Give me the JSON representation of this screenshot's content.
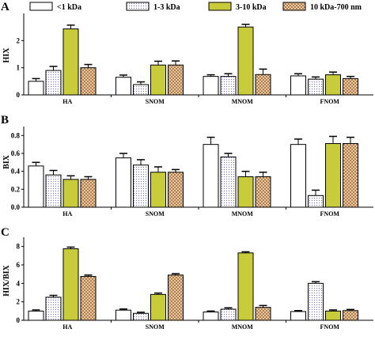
{
  "legend": [
    {
      "name": "<1 kDa",
      "pattern": "white"
    },
    {
      "name": "1-3 kDa",
      "pattern": "dots"
    },
    {
      "name": "3-10 kDa",
      "pattern": "yellow"
    },
    {
      "name": "10 kDa-700 nm",
      "pattern": "check"
    }
  ],
  "colors": {
    "yellow": "#c8cc3a",
    "dots_fg": "#6e6ec8",
    "check_a": "#b08050",
    "check_b": "#e8c8a0",
    "axis": "#000000"
  },
  "chart_data": [
    {
      "type": "bar",
      "panel": "A",
      "ylabel": "HIX",
      "categories": [
        "HA",
        "SNOM",
        "MNOM",
        "FNOM"
      ],
      "ylim": [
        0,
        3
      ],
      "yticks": [
        0,
        1,
        2
      ],
      "series": [
        {
          "name": "<1 kDa",
          "values": [
            0.5,
            0.65,
            0.68,
            0.7
          ],
          "errors": [
            0.1,
            0.08,
            0.06,
            0.08
          ]
        },
        {
          "name": "1-3 kDa",
          "values": [
            0.9,
            0.38,
            0.68,
            0.58
          ],
          "errors": [
            0.15,
            0.1,
            0.1,
            0.08
          ]
        },
        {
          "name": "3-10 kDa",
          "values": [
            2.43,
            1.1,
            2.5,
            0.74
          ],
          "errors": [
            0.14,
            0.14,
            0.1,
            0.1
          ]
        },
        {
          "name": "10 kDa-700 nm",
          "values": [
            1.0,
            1.1,
            0.75,
            0.6
          ],
          "errors": [
            0.12,
            0.15,
            0.2,
            0.08
          ]
        }
      ]
    },
    {
      "type": "bar",
      "panel": "B",
      "ylabel": "BIX",
      "categories": [
        "HA",
        "SNOM",
        "MNOM",
        "FNOM"
      ],
      "ylim": [
        0,
        0.9
      ],
      "yticks": [
        0.0,
        0.2,
        0.4,
        0.6,
        0.8
      ],
      "series": [
        {
          "name": "<1 kDa",
          "values": [
            0.46,
            0.55,
            0.7,
            0.7
          ],
          "errors": [
            0.04,
            0.05,
            0.08,
            0.06
          ]
        },
        {
          "name": "1-3 kDa",
          "values": [
            0.36,
            0.47,
            0.56,
            0.13
          ],
          "errors": [
            0.05,
            0.06,
            0.04,
            0.06
          ]
        },
        {
          "name": "3-10 kDa",
          "values": [
            0.31,
            0.39,
            0.34,
            0.71
          ],
          "errors": [
            0.04,
            0.06,
            0.06,
            0.08
          ]
        },
        {
          "name": "10 kDa-700 nm",
          "values": [
            0.31,
            0.39,
            0.34,
            0.71
          ],
          "errors": [
            0.03,
            0.03,
            0.05,
            0.07
          ]
        }
      ]
    },
    {
      "type": "bar",
      "panel": "C",
      "ylabel": "HIX/BIX",
      "categories": [
        "HA",
        "SNOM",
        "MNOM",
        "FNOM"
      ],
      "ylim": [
        0,
        9
      ],
      "yticks": [
        0,
        2,
        4,
        6,
        8
      ],
      "series": [
        {
          "name": "<1 kDa",
          "values": [
            1.0,
            1.1,
            0.9,
            0.95
          ],
          "errors": [
            0.12,
            0.12,
            0.1,
            0.1
          ]
        },
        {
          "name": "1-3 kDa",
          "values": [
            2.5,
            0.75,
            1.2,
            4.0
          ],
          "errors": [
            0.2,
            0.12,
            0.15,
            0.18
          ]
        },
        {
          "name": "3-10 kDa",
          "values": [
            7.75,
            2.8,
            7.3,
            1.0
          ],
          "errors": [
            0.18,
            0.15,
            0.12,
            0.12
          ]
        },
        {
          "name": "10 kDa-700 nm",
          "values": [
            4.75,
            4.9,
            1.4,
            1.05
          ],
          "errors": [
            0.15,
            0.15,
            0.2,
            0.12
          ]
        }
      ]
    }
  ]
}
